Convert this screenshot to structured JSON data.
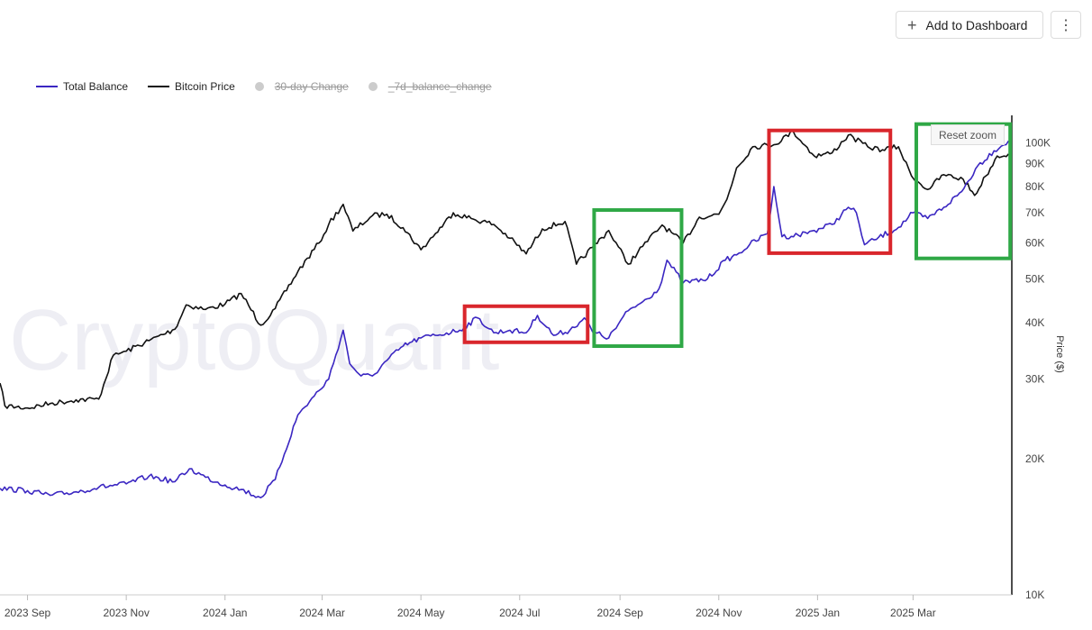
{
  "toolbar": {
    "add_label": "Add to Dashboard",
    "more_icon": "vertical-dots-icon"
  },
  "watermark": "CryptoQuant",
  "reset_zoom_label": "Reset zoom",
  "legend": [
    {
      "label": "Total Balance",
      "color": "#3b27c2",
      "enabled": true
    },
    {
      "label": "Bitcoin Price",
      "color": "#111111",
      "enabled": true
    },
    {
      "label": "30-day Change",
      "color": "#cccccc",
      "enabled": false
    },
    {
      "label": "_7d_balance_change",
      "color": "#cccccc",
      "enabled": false
    }
  ],
  "chart_data": {
    "type": "line",
    "title": "",
    "xlabel": "",
    "ylabel": "Price ($)",
    "y_scale": "log",
    "ylim": [
      10000,
      115000
    ],
    "xlim": [
      "2023-08-15",
      "2025-05-01"
    ],
    "x_tick_labels": [
      "2023 Sep",
      "2023 Nov",
      "2024 Jan",
      "2024 Mar",
      "2024 May",
      "2024 Jul",
      "2024 Sep",
      "2024 Nov",
      "2025 Jan",
      "2025 Mar"
    ],
    "x_tick_dates": [
      "2023-09-01",
      "2023-11-01",
      "2024-01-01",
      "2024-03-01",
      "2024-05-01",
      "2024-07-01",
      "2024-09-01",
      "2024-11-01",
      "2025-01-01",
      "2025-03-01"
    ],
    "y_tick_labels": [
      "10K",
      "20K",
      "30K",
      "40K",
      "50K",
      "60K",
      "70K",
      "80K",
      "90K",
      "100K"
    ],
    "y_tick_values": [
      10000,
      20000,
      30000,
      40000,
      50000,
      60000,
      70000,
      80000,
      90000,
      100000
    ],
    "series": [
      {
        "name": "Bitcoin Price",
        "color": "#111111",
        "x": [
          "2023-08-15",
          "2023-08-18",
          "2023-09-01",
          "2023-09-15",
          "2023-10-01",
          "2023-10-15",
          "2023-10-24",
          "2023-11-01",
          "2023-11-15",
          "2023-12-01",
          "2023-12-08",
          "2023-12-20",
          "2024-01-01",
          "2024-01-11",
          "2024-01-23",
          "2024-02-01",
          "2024-02-15",
          "2024-02-28",
          "2024-03-05",
          "2024-03-14",
          "2024-03-20",
          "2024-04-01",
          "2024-04-10",
          "2024-04-20",
          "2024-05-01",
          "2024-05-10",
          "2024-05-21",
          "2024-06-01",
          "2024-06-15",
          "2024-06-25",
          "2024-07-05",
          "2024-07-15",
          "2024-07-29",
          "2024-08-05",
          "2024-08-15",
          "2024-08-25",
          "2024-09-06",
          "2024-09-15",
          "2024-09-27",
          "2024-10-10",
          "2024-10-20",
          "2024-11-01",
          "2024-11-06",
          "2024-11-12",
          "2024-11-22",
          "2024-12-05",
          "2024-12-17",
          "2024-12-30",
          "2025-01-10",
          "2025-01-20",
          "2025-02-01",
          "2025-02-10",
          "2025-02-20",
          "2025-02-28",
          "2025-03-10",
          "2025-03-20",
          "2025-04-01",
          "2025-04-08",
          "2025-04-15",
          "2025-04-22",
          "2025-04-29"
        ],
        "values": [
          29400,
          26200,
          25900,
          26500,
          27000,
          27100,
          33900,
          34600,
          36500,
          38700,
          43800,
          42800,
          44000,
          46400,
          39500,
          43000,
          51900,
          60000,
          66000,
          73100,
          63800,
          69000,
          69500,
          64900,
          58000,
          63000,
          70000,
          68000,
          66000,
          61500,
          56800,
          64500,
          67000,
          53900,
          58700,
          64000,
          53900,
          59000,
          65800,
          60000,
          68500,
          69500,
          75000,
          88000,
          98000,
          99000,
          106000,
          93500,
          95000,
          104000,
          98000,
          96500,
          98000,
          84500,
          78800,
          85000,
          83000,
          76500,
          84500,
          93500,
          94500
        ]
      },
      {
        "name": "Total Balance",
        "color": "#3b27c2",
        "x": [
          "2023-08-15",
          "2023-09-01",
          "2023-09-15",
          "2023-10-01",
          "2023-10-15",
          "2023-11-01",
          "2023-11-15",
          "2023-12-01",
          "2023-12-10",
          "2023-12-20",
          "2024-01-01",
          "2024-01-11",
          "2024-01-23",
          "2024-02-01",
          "2024-02-15",
          "2024-02-28",
          "2024-03-05",
          "2024-03-14",
          "2024-03-18",
          "2024-03-25",
          "2024-04-01",
          "2024-04-10",
          "2024-04-20",
          "2024-05-01",
          "2024-05-10",
          "2024-05-25",
          "2024-06-05",
          "2024-06-15",
          "2024-06-25",
          "2024-07-05",
          "2024-07-12",
          "2024-07-22",
          "2024-08-01",
          "2024-08-10",
          "2024-08-15",
          "2024-08-25",
          "2024-09-06",
          "2024-09-15",
          "2024-09-25",
          "2024-09-30",
          "2024-10-10",
          "2024-10-25",
          "2024-11-05",
          "2024-11-12",
          "2024-11-20",
          "2024-12-01",
          "2024-12-05",
          "2024-12-10",
          "2024-12-20",
          "2024-12-30",
          "2025-01-10",
          "2025-01-20",
          "2025-01-25",
          "2025-01-30",
          "2025-02-05",
          "2025-02-20",
          "2025-03-01",
          "2025-03-10",
          "2025-03-20",
          "2025-03-31",
          "2025-04-10",
          "2025-04-20",
          "2025-04-29"
        ],
        "values": [
          17200,
          17000,
          16600,
          16900,
          17300,
          17600,
          18300,
          17800,
          19000,
          18200,
          17500,
          17100,
          16400,
          18000,
          25000,
          28300,
          30000,
          38500,
          32500,
          30500,
          30500,
          33000,
          35500,
          37000,
          37500,
          38500,
          41000,
          38000,
          38500,
          38000,
          41500,
          37500,
          38500,
          41000,
          38200,
          37000,
          42500,
          44500,
          47500,
          55000,
          49000,
          50000,
          55000,
          56500,
          59500,
          63000,
          80000,
          62000,
          62500,
          64000,
          66000,
          72000,
          70000,
          59500,
          61000,
          65000,
          70000,
          68000,
          72000,
          78000,
          89000,
          96000,
          101000
        ]
      }
    ],
    "annotations": [
      {
        "type": "box",
        "color": "#d9262c",
        "label": "",
        "x_range": [
          "2024-05-28",
          "2024-08-12"
        ],
        "y_range": [
          36200,
          43500
        ]
      },
      {
        "type": "box",
        "color": "#2fa846",
        "label": "",
        "x_range": [
          "2024-08-16",
          "2024-10-09"
        ],
        "y_range": [
          35500,
          71000
        ]
      },
      {
        "type": "box",
        "color": "#d9262c",
        "label": "",
        "x_range": [
          "2024-12-02",
          "2025-02-15"
        ],
        "y_range": [
          57000,
          106500
        ]
      },
      {
        "type": "box",
        "color": "#2fa846",
        "label": "",
        "x_range": [
          "2025-03-03",
          "2025-04-30"
        ],
        "y_range": [
          55500,
          110000
        ]
      }
    ],
    "grid": false,
    "legend_position": "top-left"
  }
}
